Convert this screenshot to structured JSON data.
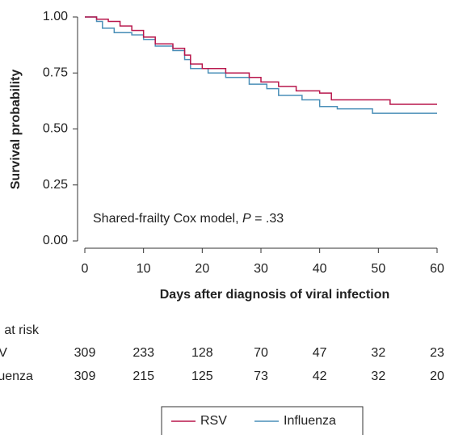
{
  "chart_data": {
    "type": "step",
    "ylabel": "Survival probability",
    "xlabel": "Days after diagnosis of viral infection",
    "annotation": [
      "Shared-frailty Cox model, ",
      "P",
      " = .33"
    ],
    "xlim": [
      0,
      60
    ],
    "ylim": [
      0,
      1
    ],
    "xticks": [
      0,
      10,
      20,
      30,
      40,
      50,
      60
    ],
    "yticks": [
      {
        "value": 0,
        "label": "0.00"
      },
      {
        "value": 0.25,
        "label": "0.25"
      },
      {
        "value": 0.5,
        "label": "0.50"
      },
      {
        "value": 0.75,
        "label": "0.75"
      },
      {
        "value": 1,
        "label": "1.00"
      }
    ],
    "risk_title": "No. at risk",
    "series": [
      {
        "name": "RSV",
        "color": "#b8174c",
        "x": [
          0,
          2,
          4,
          6,
          8,
          10,
          12,
          15,
          17,
          18,
          20,
          24,
          28,
          30,
          33,
          36,
          40,
          42,
          52,
          60
        ],
        "values": [
          1.0,
          0.99,
          0.98,
          0.96,
          0.94,
          0.91,
          0.88,
          0.86,
          0.83,
          0.79,
          0.77,
          0.75,
          0.73,
          0.71,
          0.69,
          0.67,
          0.66,
          0.63,
          0.61,
          0.61
        ],
        "at_risk": [
          309,
          233,
          128,
          70,
          47,
          32,
          23
        ]
      },
      {
        "name": "Influenza",
        "color": "#4a8fb8",
        "x": [
          0,
          2,
          3,
          5,
          8,
          10,
          12,
          15,
          17,
          18,
          21,
          24,
          28,
          31,
          33,
          37,
          40,
          43,
          49,
          60
        ],
        "values": [
          1.0,
          0.98,
          0.95,
          0.93,
          0.92,
          0.9,
          0.87,
          0.85,
          0.81,
          0.77,
          0.75,
          0.73,
          0.7,
          0.68,
          0.65,
          0.63,
          0.6,
          0.59,
          0.57,
          0.57
        ],
        "at_risk": [
          309,
          215,
          125,
          73,
          42,
          32,
          20
        ]
      }
    ]
  }
}
